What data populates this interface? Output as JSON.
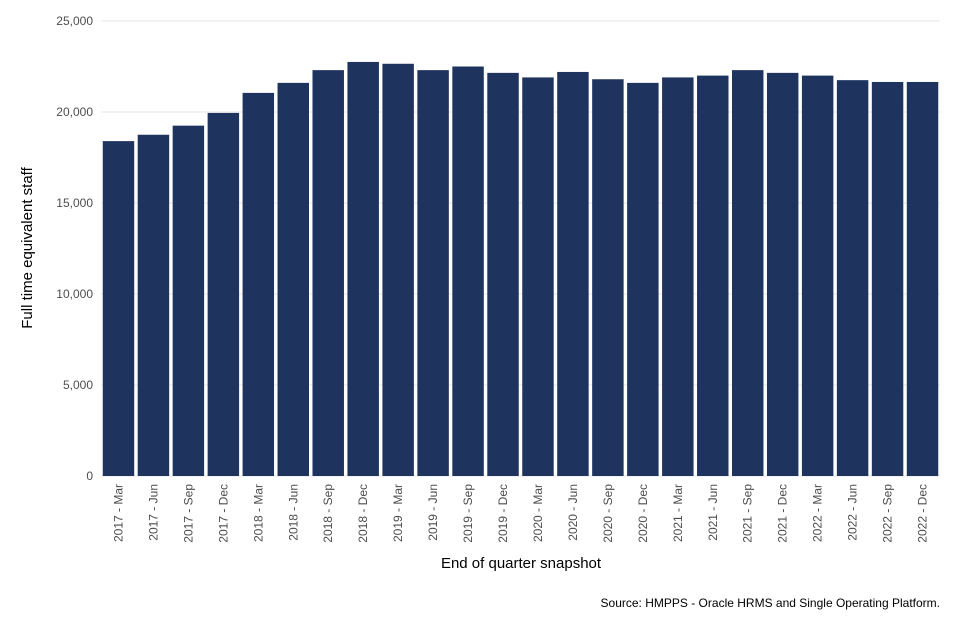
{
  "chart_data": {
    "type": "bar",
    "title": "",
    "xlabel": "End of quarter snapshot",
    "ylabel": "Full time equivalent staff",
    "ylim": [
      0,
      25000
    ],
    "yticks": [
      0,
      5000,
      10000,
      15000,
      20000,
      25000
    ],
    "ytick_labels": [
      "0",
      "5,000",
      "10,000",
      "15,000",
      "20,000",
      "25,000"
    ],
    "grid": true,
    "legend": "none",
    "bar_color": "#1f335f",
    "categories": [
      "2017 - Mar",
      "2017 - Jun",
      "2017 - Sep",
      "2017 - Dec",
      "2018 - Mar",
      "2018 - Jun",
      "2018 - Sep",
      "2018 - Dec",
      "2019 - Mar",
      "2019 - Jun",
      "2019 - Sep",
      "2019 - Dec",
      "2020 - Mar",
      "2020 - Jun",
      "2020 - Sep",
      "2020 - Dec",
      "2021 - Mar",
      "2021 - Jun",
      "2021 - Sep",
      "2021 - Dec",
      "2022 - Mar",
      "2022 - Jun",
      "2022 - Sep",
      "2022 - Dec"
    ],
    "values": [
      18400,
      18750,
      19250,
      19950,
      21050,
      21600,
      22300,
      22750,
      22650,
      22300,
      22500,
      22150,
      21900,
      22200,
      21800,
      21600,
      21900,
      22000,
      22300,
      22150,
      22000,
      21750,
      21650,
      21650
    ],
    "source": "Source: HMPPS - Oracle HRMS and Single Operating Platform."
  }
}
